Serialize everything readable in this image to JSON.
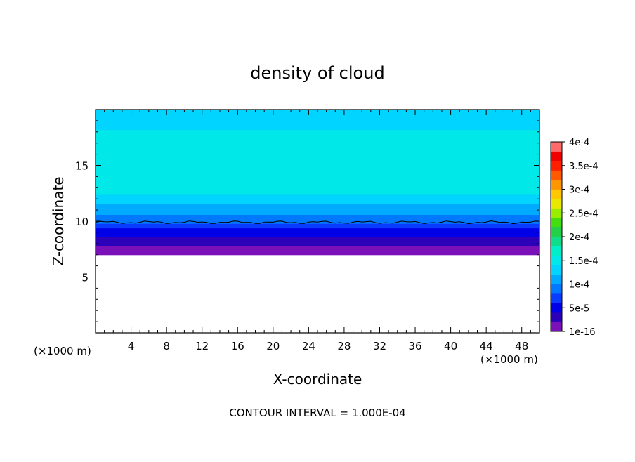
{
  "chart_data": {
    "type": "heatmap",
    "title": "density of cloud",
    "xlabel": "X-coordinate",
    "ylabel": "Z-coordinate",
    "x_unit": "(×1000 m)",
    "y_unit": "(×1000 m)",
    "xlim": [
      0,
      50
    ],
    "ylim": [
      0,
      20
    ],
    "x_ticks": [
      4,
      8,
      12,
      16,
      20,
      24,
      28,
      32,
      36,
      40,
      44,
      48
    ],
    "y_ticks": [
      5,
      10,
      15
    ],
    "footer": "CONTOUR INTERVAL = 1.000E-04",
    "colorbar": {
      "labels": [
        "1e-16",
        "5e-5",
        "1e-4",
        "1.5e-4",
        "2e-4",
        "2.5e-4",
        "3e-4",
        "3.5e-4",
        "4e-4"
      ],
      "colors": [
        "#7a10b8",
        "#2c00b8",
        "#0000e8",
        "#0a3cff",
        "#0078ff",
        "#00aaff",
        "#00d4ff",
        "#00e8e8",
        "#00eec8",
        "#10dd8a",
        "#22d04a",
        "#44dd10",
        "#99ee00",
        "#e8e800",
        "#ffc800",
        "#ff9600",
        "#ff5a00",
        "#ff2000",
        "#f00000",
        "#ff6a6a"
      ]
    },
    "profile": {
      "z": [
        7,
        7.4,
        7.8,
        8.2,
        8.6,
        9.0,
        9.4,
        9.8,
        10.2,
        10.6,
        11,
        11.6,
        12.4,
        13,
        16.5,
        17.2,
        18.2,
        20
      ],
      "density": [
        1e-16,
        1e-05,
        2e-05,
        3e-05,
        4e-05,
        5e-05,
        6e-05,
        8e-05,
        9e-05,
        0.0001,
        0.00011,
        0.000125,
        0.00014,
        0.000155,
        0.000155,
        0.000145,
        0.00013,
        0.00012
      ]
    },
    "contour_line_z": 9.9
  }
}
